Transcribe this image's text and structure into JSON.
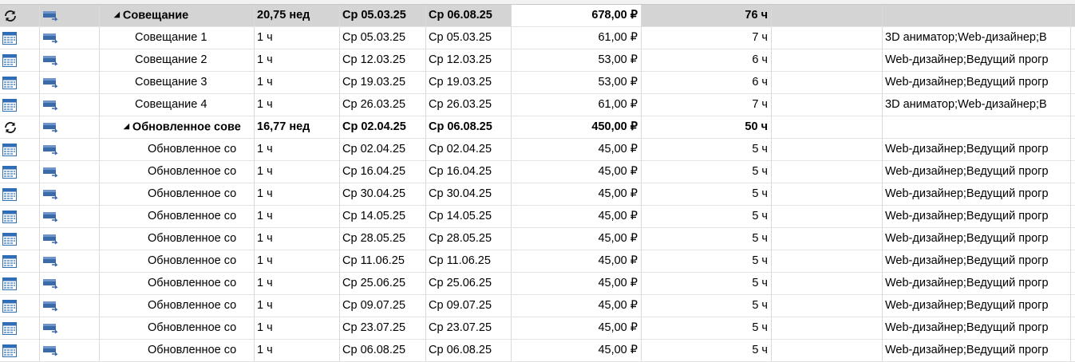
{
  "columns": [
    "indicator",
    "mode",
    "name",
    "duration",
    "start",
    "finish",
    "cost",
    "work",
    "blank",
    "resources"
  ],
  "rows": [
    {
      "type": "summary",
      "level": 1,
      "indicator": "recurring-icon",
      "name": "Совещание",
      "duration": "20,75 нед",
      "start": "Ср 05.03.25",
      "finish": "Ср 06.08.25",
      "cost": "678,00 ₽",
      "work": "76 ч",
      "resources": "",
      "selected": true
    },
    {
      "type": "task",
      "level": 2,
      "indicator": "calendar-icon",
      "name": "Совещание 1",
      "duration": "1 ч",
      "start": "Ср 05.03.25",
      "finish": "Ср 05.03.25",
      "cost": "61,00 ₽",
      "work": "7 ч",
      "resources": "3D аниматор;Web-дизайнер;В"
    },
    {
      "type": "task",
      "level": 2,
      "indicator": "calendar-icon",
      "name": "Совещание 2",
      "duration": "1 ч",
      "start": "Ср 12.03.25",
      "finish": "Ср 12.03.25",
      "cost": "53,00 ₽",
      "work": "6 ч",
      "resources": "Web-дизайнер;Ведущий прогр"
    },
    {
      "type": "task",
      "level": 2,
      "indicator": "calendar-icon",
      "name": "Совещание 3",
      "duration": "1 ч",
      "start": "Ср 19.03.25",
      "finish": "Ср 19.03.25",
      "cost": "53,00 ₽",
      "work": "6 ч",
      "resources": "Web-дизайнер;Ведущий прогр"
    },
    {
      "type": "task",
      "level": 2,
      "indicator": "calendar-icon",
      "name": "Совещание 4",
      "duration": "1 ч",
      "start": "Ср 26.03.25",
      "finish": "Ср 26.03.25",
      "cost": "61,00 ₽",
      "work": "7 ч",
      "resources": "3D аниматор;Web-дизайнер;В"
    },
    {
      "type": "summary",
      "level": 1,
      "indicator": "recurring-icon",
      "name": "Обновленное сове",
      "duration": "16,77 нед",
      "start": "Ср 02.04.25",
      "finish": "Ср 06.08.25",
      "cost": "450,00 ₽",
      "work": "50 ч",
      "resources": ""
    },
    {
      "type": "task",
      "level": 2,
      "indicator": "calendar-icon",
      "name": "Обновленное со",
      "duration": "1 ч",
      "start": "Ср 02.04.25",
      "finish": "Ср 02.04.25",
      "cost": "45,00 ₽",
      "work": "5 ч",
      "resources": "Web-дизайнер;Ведущий прогр"
    },
    {
      "type": "task",
      "level": 2,
      "indicator": "calendar-icon",
      "name": "Обновленное со",
      "duration": "1 ч",
      "start": "Ср 16.04.25",
      "finish": "Ср 16.04.25",
      "cost": "45,00 ₽",
      "work": "5 ч",
      "resources": "Web-дизайнер;Ведущий прогр"
    },
    {
      "type": "task",
      "level": 2,
      "indicator": "calendar-icon",
      "name": "Обновленное со",
      "duration": "1 ч",
      "start": "Ср 30.04.25",
      "finish": "Ср 30.04.25",
      "cost": "45,00 ₽",
      "work": "5 ч",
      "resources": "Web-дизайнер;Ведущий прогр"
    },
    {
      "type": "task",
      "level": 2,
      "indicator": "calendar-icon",
      "name": "Обновленное со",
      "duration": "1 ч",
      "start": "Ср 14.05.25",
      "finish": "Ср 14.05.25",
      "cost": "45,00 ₽",
      "work": "5 ч",
      "resources": "Web-дизайнер;Ведущий прогр"
    },
    {
      "type": "task",
      "level": 2,
      "indicator": "calendar-icon",
      "name": "Обновленное со",
      "duration": "1 ч",
      "start": "Ср 28.05.25",
      "finish": "Ср 28.05.25",
      "cost": "45,00 ₽",
      "work": "5 ч",
      "resources": "Web-дизайнер;Ведущий прогр"
    },
    {
      "type": "task",
      "level": 2,
      "indicator": "calendar-icon",
      "name": "Обновленное со",
      "duration": "1 ч",
      "start": "Ср 11.06.25",
      "finish": "Ср 11.06.25",
      "cost": "45,00 ₽",
      "work": "5 ч",
      "resources": "Web-дизайнер;Ведущий прогр"
    },
    {
      "type": "task",
      "level": 2,
      "indicator": "calendar-icon",
      "name": "Обновленное со",
      "duration": "1 ч",
      "start": "Ср 25.06.25",
      "finish": "Ср 25.06.25",
      "cost": "45,00 ₽",
      "work": "5 ч",
      "resources": "Web-дизайнер;Ведущий прогр"
    },
    {
      "type": "task",
      "level": 2,
      "indicator": "calendar-icon",
      "name": "Обновленное со",
      "duration": "1 ч",
      "start": "Ср 09.07.25",
      "finish": "Ср 09.07.25",
      "cost": "45,00 ₽",
      "work": "5 ч",
      "resources": "Web-дизайнер;Ведущий прогр"
    },
    {
      "type": "task",
      "level": 2,
      "indicator": "calendar-icon",
      "name": "Обновленное со",
      "duration": "1 ч",
      "start": "Ср 23.07.25",
      "finish": "Ср 23.07.25",
      "cost": "45,00 ₽",
      "work": "5 ч",
      "resources": "Web-дизайнер;Ведущий прогр"
    },
    {
      "type": "task",
      "level": 2,
      "indicator": "calendar-icon",
      "name": "Обновленное со",
      "duration": "1 ч",
      "start": "Ср 06.08.25",
      "finish": "Ср 06.08.25",
      "cost": "45,00 ₽",
      "work": "5 ч",
      "resources": "Web-дизайнер;Ведущий прогр"
    }
  ],
  "icons": {
    "mode": "auto-scheduled-task-icon",
    "summary_toggle": "collapse-triangle-icon"
  },
  "colors": {
    "selection_row": "#d4d4d4",
    "selection_line": "#4e8a3e",
    "mode_icon": "#3a6aa8",
    "calendar_icon": "#2f6db5"
  }
}
